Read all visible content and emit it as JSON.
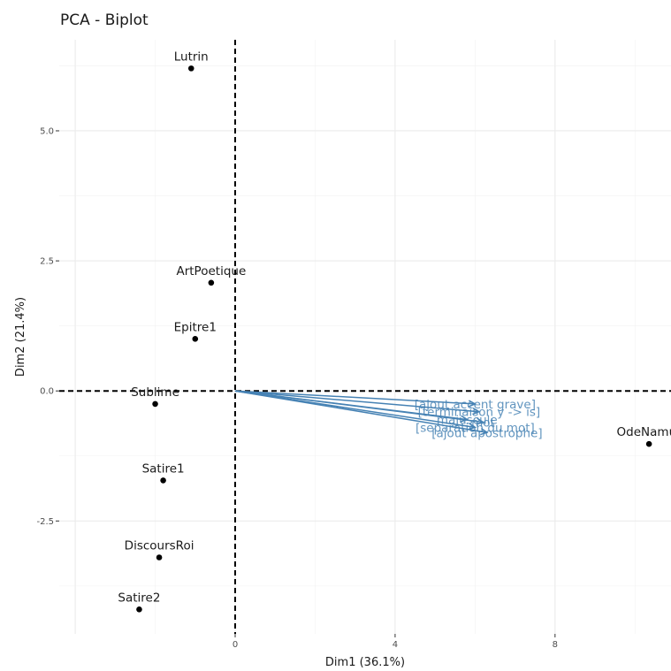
{
  "chart_data": {
    "type": "scatter",
    "title": "PCA - Biplot",
    "xlabel": "Dim1 (36.1%)",
    "ylabel": "Dim2 (21.4%)",
    "xlim": [
      -4.4,
      10.9
    ],
    "ylim": [
      -4.67,
      6.75
    ],
    "xticks": [
      0,
      4,
      8
    ],
    "yticks": [
      -2.5,
      0.0,
      2.5,
      5.0
    ],
    "xtick_labels": [
      "0",
      "4",
      "8"
    ],
    "ytick_labels": [
      "-2.5",
      "0.0",
      "2.5",
      "5.0"
    ],
    "grid": true,
    "reference_lines": {
      "x": 0,
      "y": 0,
      "style": "dashed"
    },
    "point_color": "#000000",
    "arrow_color": "#4682B4",
    "individuals": [
      {
        "label": "Lutrin",
        "x": -1.1,
        "y": 6.2
      },
      {
        "label": "ArtPoetique",
        "x": -0.6,
        "y": 2.08
      },
      {
        "label": "Epitre1",
        "x": -1.0,
        "y": 1.0
      },
      {
        "label": "Sublime",
        "x": -2.0,
        "y": -0.25
      },
      {
        "label": "Satire1",
        "x": -1.8,
        "y": -1.72
      },
      {
        "label": "DiscoursRoi",
        "x": -1.9,
        "y": -3.2
      },
      {
        "label": "Satire2",
        "x": -2.4,
        "y": -4.2
      },
      {
        "label": "OdeNamur",
        "x": 10.35,
        "y": -1.02
      }
    ],
    "variables": [
      {
        "label": "[ajout accent grave]",
        "x": 6.0,
        "y": -0.25
      },
      {
        "label": "[terminaison y -> is]",
        "x": 6.1,
        "y": -0.4
      },
      {
        "label": "majuscule",
        "x": 5.8,
        "y": -0.55
      },
      {
        "label": "mot",
        "x": 6.2,
        "y": -0.6
      },
      {
        "label": "[separation du mot]",
        "x": 6.0,
        "y": -0.7
      },
      {
        "label": "[ajout apostrophe]",
        "x": 6.3,
        "y": -0.8
      }
    ]
  }
}
